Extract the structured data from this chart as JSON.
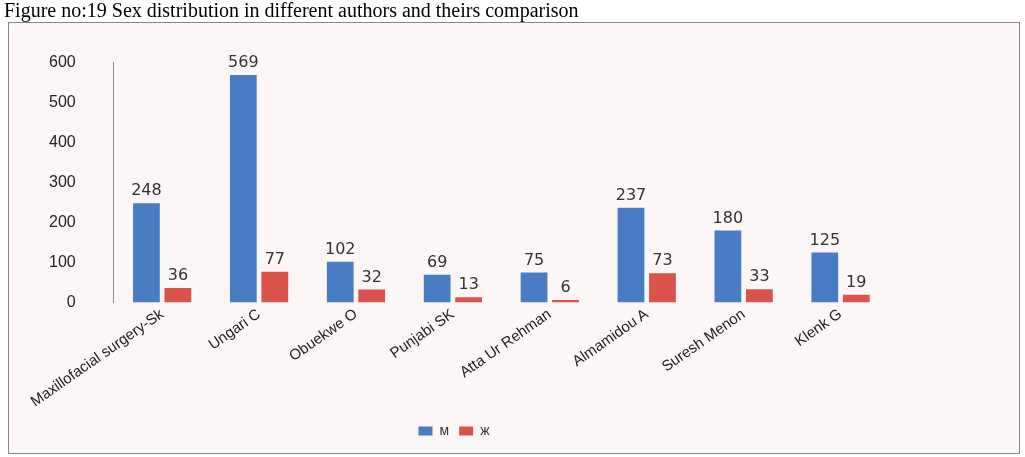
{
  "chart_data": {
    "type": "bar",
    "title": "Figure no:19 Sex distribution in different authors and theirs comparison",
    "categories": [
      "Maxillofacial surgery-Sk",
      "Ungari C",
      "Obuekwe O",
      "Punjabi SK",
      "Atta Ur Rehman",
      "Almamidou A",
      "Suresh Menon",
      "Klenk G"
    ],
    "series": [
      {
        "name": "м",
        "color": "#4a7cc4",
        "values": [
          248,
          569,
          102,
          69,
          75,
          237,
          180,
          125
        ]
      },
      {
        "name": "ж",
        "color": "#d9534a",
        "values": [
          36,
          77,
          32,
          13,
          6,
          73,
          33,
          19
        ]
      }
    ],
    "ylim": [
      0,
      600
    ],
    "yticks": [
      0,
      100,
      200,
      300,
      400,
      500,
      600
    ],
    "grid": false,
    "legend": "bottom",
    "data_labels": true
  }
}
